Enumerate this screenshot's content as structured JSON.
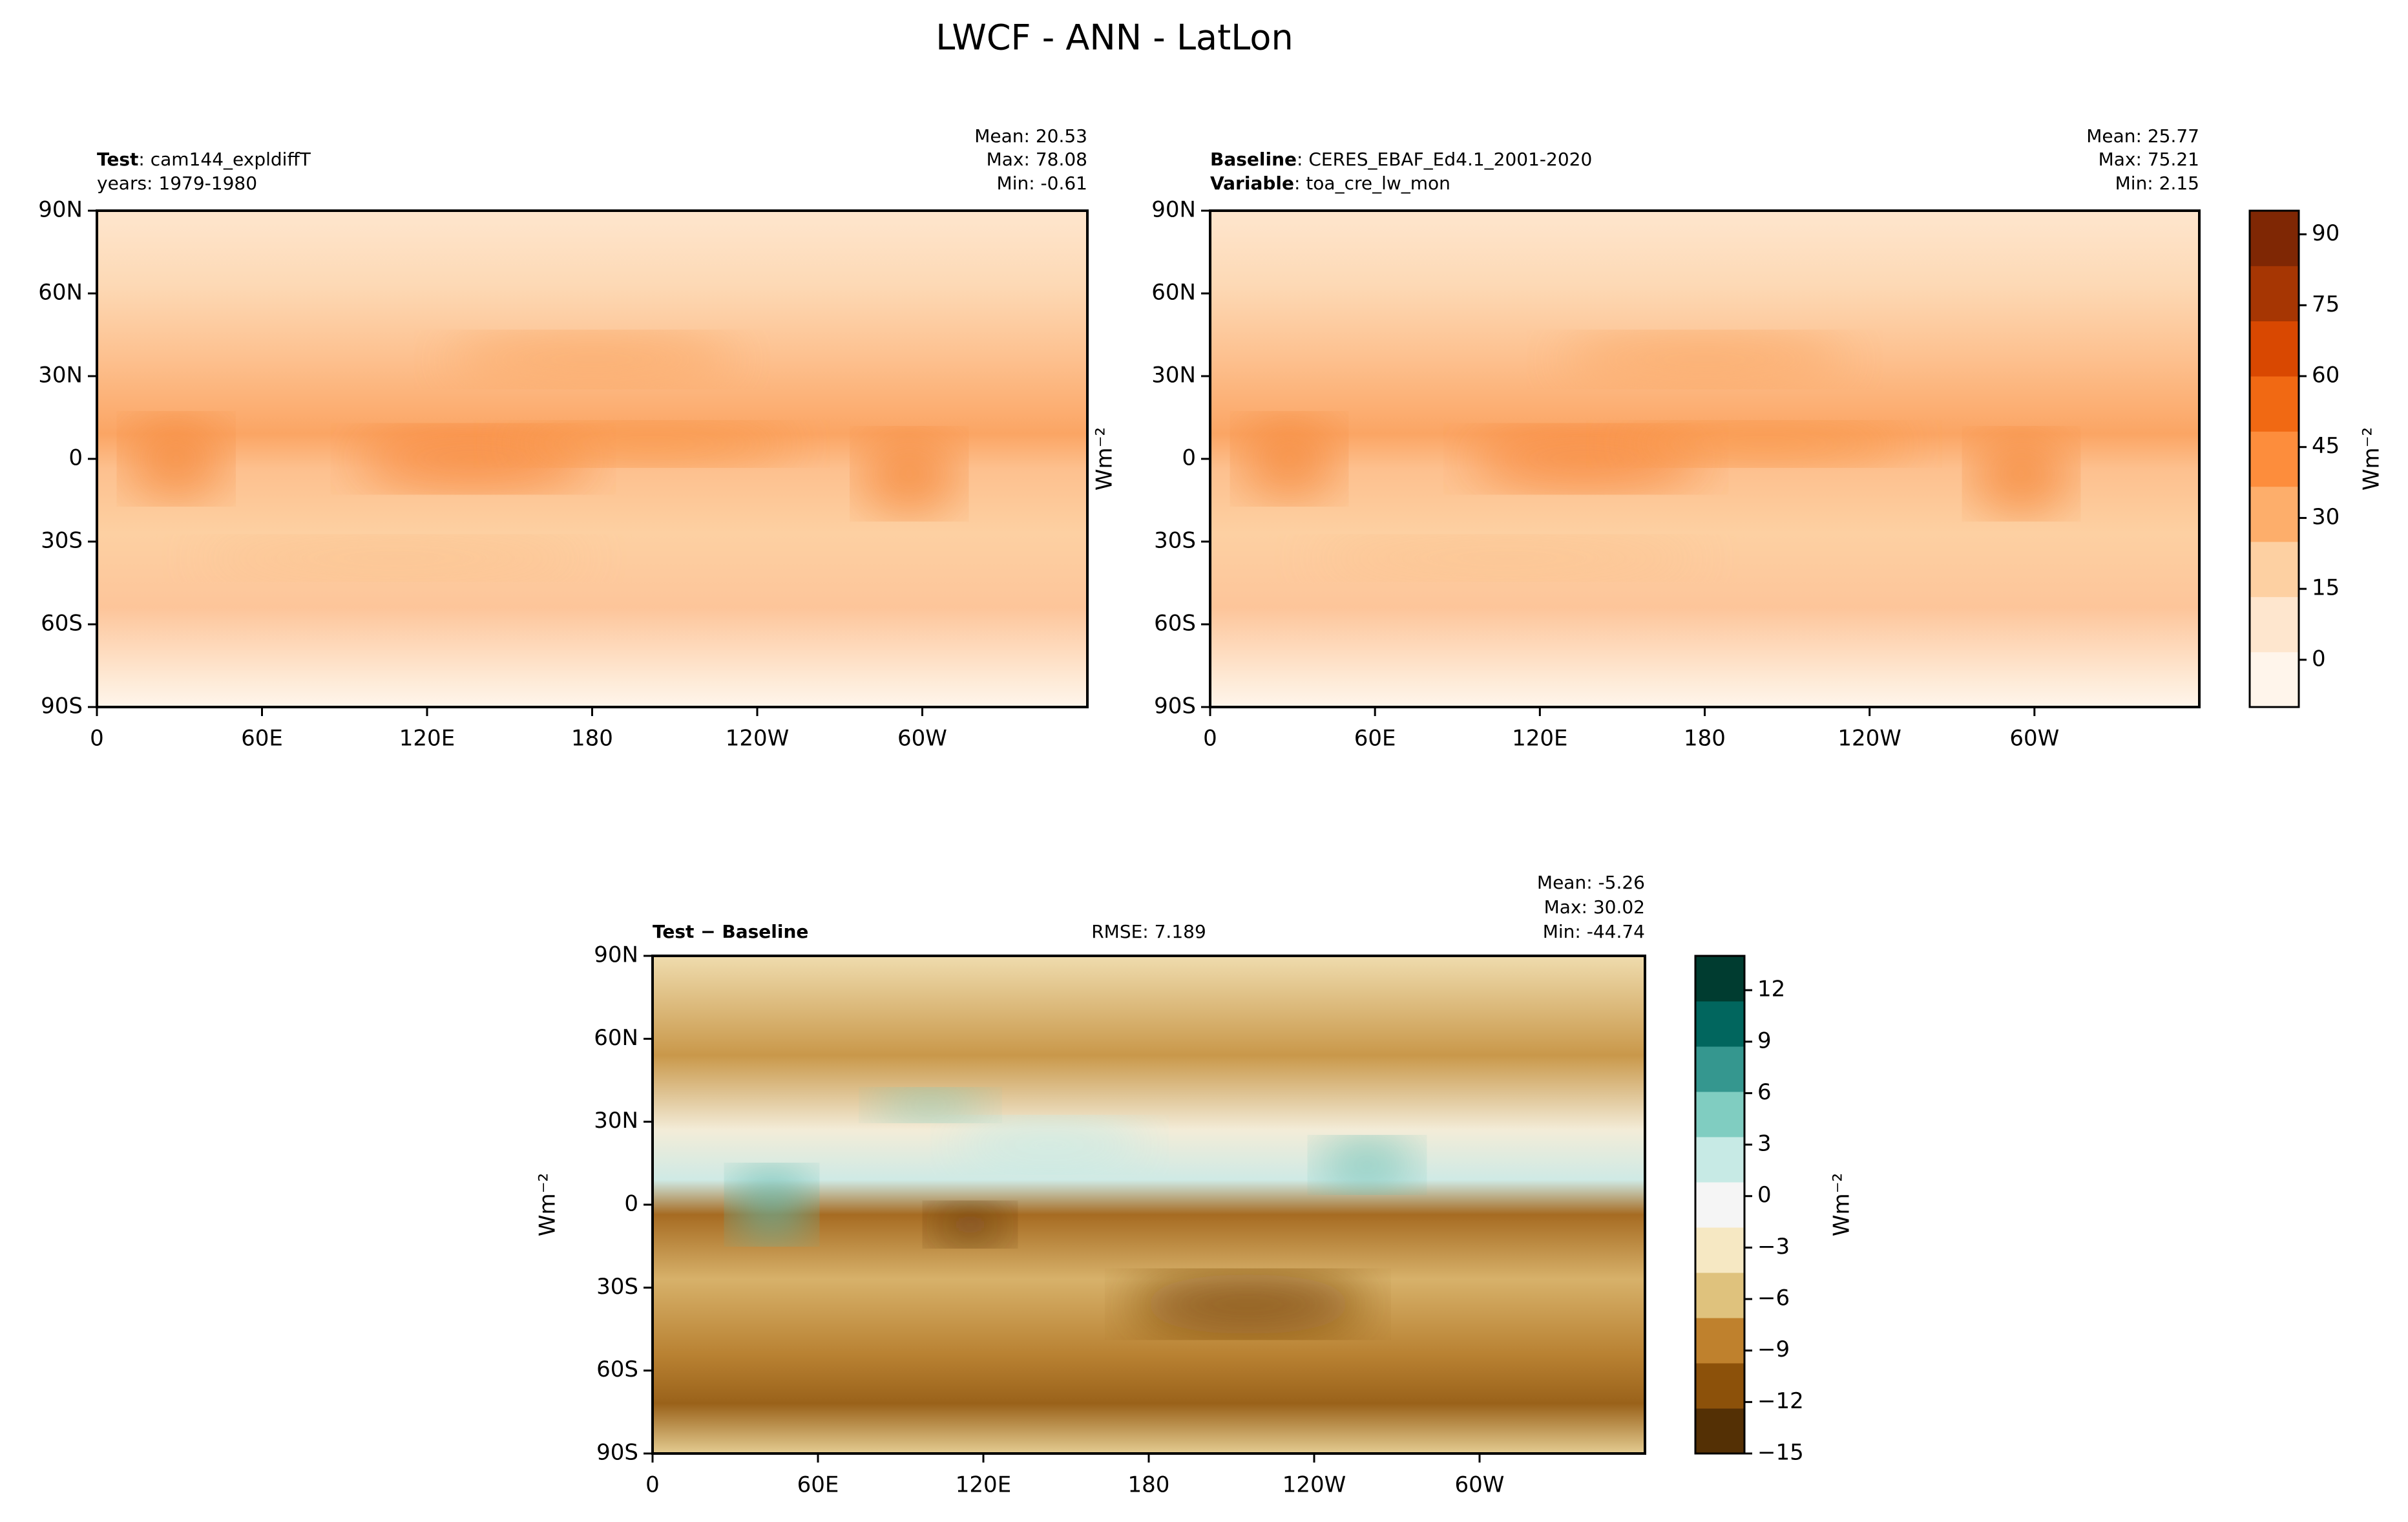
{
  "title": "LWCF - ANN - LatLon",
  "chart_data": [
    {
      "type": "map",
      "title_lines": [
        {
          "key": "Test",
          "value": ": cam144_expldiffT"
        },
        {
          "value": "years: 1979-1980"
        }
      ],
      "stats": [
        "Mean: 20.53",
        "Max: 78.08",
        "Min: -0.61"
      ],
      "xlim": [
        0,
        360
      ],
      "ylim": [
        -90,
        90
      ],
      "xticks": [
        0,
        {
          "value": 60,
          "label": "60E"
        },
        {
          "value": 120,
          "label": "120E"
        },
        180,
        {
          "value": 240,
          "label": "120W"
        },
        {
          "value": 300,
          "label": "60W"
        }
      ],
      "yticks": [
        {
          "value": -90,
          "label": "90S"
        },
        {
          "value": -60,
          "label": "60S"
        },
        {
          "value": -30,
          "label": "30S"
        },
        0,
        {
          "value": 30,
          "label": "30N"
        },
        {
          "value": 60,
          "label": "60N"
        },
        {
          "value": 90,
          "label": "90N"
        }
      ]
    },
    {
      "type": "map",
      "title_lines": [
        {
          "key": "Baseline",
          "value": ": CERES_EBAF_Ed4.1_2001-2020"
        },
        {
          "key": "Variable",
          "value": ": toa_cre_lw_mon"
        }
      ],
      "stats": [
        "Mean: 25.77",
        "Max: 75.21",
        "Min:  2.15"
      ],
      "ylabel": "Wm⁻²",
      "xlim": [
        0,
        360
      ],
      "ylim": [
        -90,
        90
      ],
      "xticks": [
        0,
        {
          "value": 60,
          "label": "60E"
        },
        {
          "value": 120,
          "label": "120E"
        },
        180,
        {
          "value": 240,
          "label": "120W"
        },
        {
          "value": 300,
          "label": "60W"
        }
      ],
      "yticks": [
        {
          "value": -90,
          "label": "90S"
        },
        {
          "value": -60,
          "label": "60S"
        },
        {
          "value": -30,
          "label": "30S"
        },
        0,
        {
          "value": 30,
          "label": "30N"
        },
        {
          "value": 60,
          "label": "60N"
        },
        {
          "value": 90,
          "label": "90N"
        }
      ],
      "colorbar": {
        "label": "Wm⁻²",
        "lim": [
          -10,
          95
        ],
        "ticks": [
          0,
          15,
          30,
          45,
          60,
          75,
          90
        ],
        "colormap": [
          "#fff5eb",
          "#fee6ce",
          "#fdd0a2",
          "#fdae6b",
          "#fd8d3c",
          "#f16913",
          "#d94801",
          "#a63603",
          "#7f2704"
        ]
      }
    },
    {
      "type": "map",
      "title_lines": [
        {
          "key": "Test − Baseline"
        }
      ],
      "center_title": "RMSE: 7.189",
      "stats": [
        "Mean: -5.26",
        "Max: 30.02",
        "Min: -44.74"
      ],
      "ylabel": "Wm⁻²",
      "xlim": [
        0,
        360
      ],
      "ylim": [
        -90,
        90
      ],
      "xticks": [
        0,
        {
          "value": 60,
          "label": "60E"
        },
        {
          "value": 120,
          "label": "120E"
        },
        180,
        {
          "value": 240,
          "label": "120W"
        },
        {
          "value": 300,
          "label": "60W"
        }
      ],
      "yticks": [
        {
          "value": -90,
          "label": "90S"
        },
        {
          "value": -60,
          "label": "60S"
        },
        {
          "value": -30,
          "label": "30S"
        },
        0,
        {
          "value": 30,
          "label": "30N"
        },
        {
          "value": 60,
          "label": "60N"
        },
        {
          "value": 90,
          "label": "90N"
        }
      ],
      "colorbar": {
        "label": "Wm⁻²",
        "lim": [
          -15,
          14
        ],
        "ticks": [
          {
            "value": -15,
            "label": "−15"
          },
          {
            "value": -12,
            "label": "−12"
          },
          {
            "value": -9,
            "label": "−9"
          },
          {
            "value": -6,
            "label": "−6"
          },
          {
            "value": -3,
            "label": "−3"
          },
          0,
          3,
          6,
          9,
          12
        ],
        "colormap": [
          "#543005",
          "#8c510a",
          "#bf812d",
          "#dfc27d",
          "#f6e8c3",
          "#f5f5f5",
          "#c7eae5",
          "#80cdc1",
          "#35978f",
          "#01665e",
          "#003c30"
        ]
      }
    }
  ]
}
